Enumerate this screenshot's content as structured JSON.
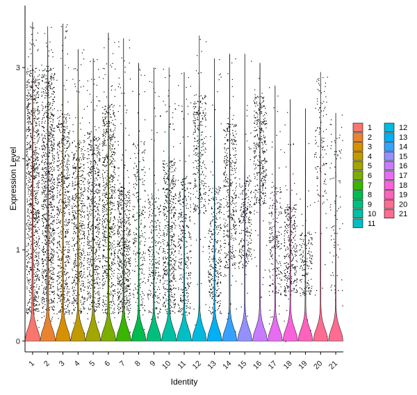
{
  "chart_data": {
    "type": "violin",
    "title": "",
    "xlabel": "Identity",
    "ylabel": "Expression Level",
    "ylim": [
      -0.12,
      3.68
    ],
    "yticks": [
      0,
      1,
      2,
      3
    ],
    "categories": [
      "1",
      "2",
      "3",
      "4",
      "5",
      "6",
      "7",
      "8",
      "9",
      "10",
      "11",
      "12",
      "13",
      "14",
      "15",
      "16",
      "17",
      "18",
      "19",
      "20",
      "21"
    ],
    "colors": [
      "#F8766D",
      "#EA8331",
      "#D89000",
      "#C09B00",
      "#A3A500",
      "#7CAE00",
      "#39B600",
      "#00BB4E",
      "#00BF7D",
      "#00C1A3",
      "#00BFC4",
      "#00BAE0",
      "#00B0F6",
      "#35A2FF",
      "#9590FF",
      "#C77CFF",
      "#E76BF3",
      "#FA62DB",
      "#FF62BC",
      "#FF6C91",
      "#FF6C91"
    ],
    "point_density": [
      1.0,
      1.0,
      0.62,
      0.55,
      0.6,
      0.72,
      0.55,
      0.22,
      0.22,
      0.55,
      0.3,
      0.26,
      0.3,
      0.36,
      0.22,
      0.32,
      0.18,
      0.28,
      0.12,
      0.07,
      0.03
    ],
    "body_range": [
      [
        0.3,
        3.0
      ],
      [
        0.3,
        3.0
      ],
      [
        0.3,
        2.5
      ],
      [
        0.3,
        2.2
      ],
      [
        0.3,
        2.3
      ],
      [
        0.3,
        2.6
      ],
      [
        0.3,
        1.7
      ],
      [
        0.3,
        2.2
      ],
      [
        0.3,
        1.6
      ],
      [
        0.3,
        2.0
      ],
      [
        0.3,
        1.8
      ],
      [
        1.4,
        2.7
      ],
      [
        0.3,
        1.7
      ],
      [
        0.8,
        2.4
      ],
      [
        0.8,
        1.8
      ],
      [
        1.5,
        2.7
      ],
      [
        0.5,
        1.7
      ],
      [
        0.5,
        1.5
      ],
      [
        0.5,
        1.2
      ],
      [
        1.5,
        2.9
      ],
      [
        0.5,
        2.5
      ]
    ],
    "max_value": [
      3.5,
      3.45,
      3.48,
      3.2,
      3.1,
      3.38,
      3.32,
      3.05,
      3.0,
      3.0,
      2.95,
      3.35,
      3.1,
      3.15,
      3.15,
      3.05,
      2.8,
      2.65,
      2.55,
      2.95,
      2.5
    ],
    "legend": {
      "items": [
        "1",
        "2",
        "3",
        "4",
        "5",
        "6",
        "7",
        "8",
        "9",
        "10",
        "11",
        "12",
        "13",
        "14",
        "15",
        "16",
        "17",
        "18",
        "19",
        "20",
        "21"
      ],
      "columns": 2,
      "placement": "right"
    }
  }
}
